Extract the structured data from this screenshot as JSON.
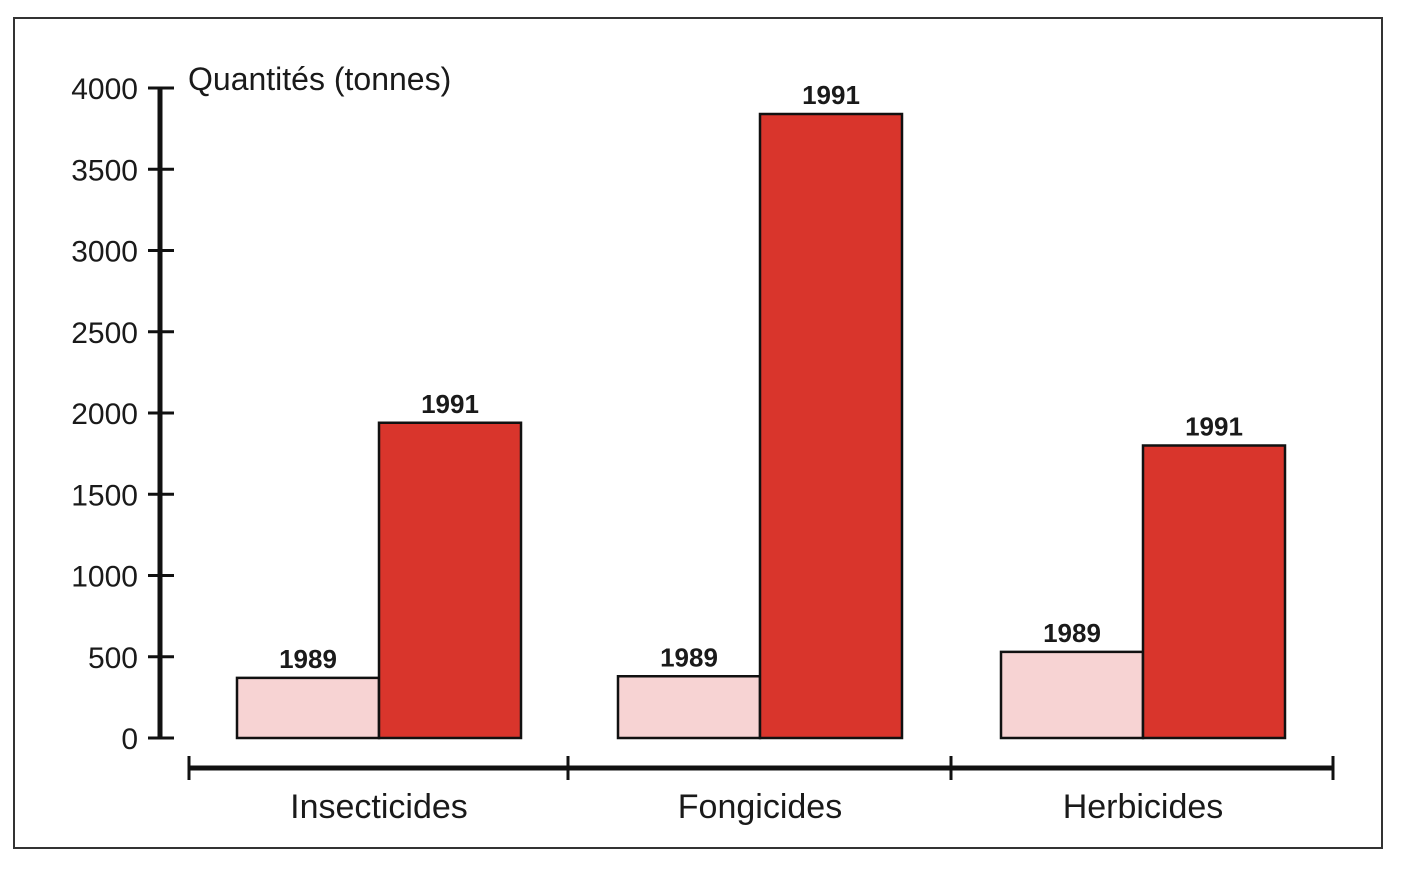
{
  "chart_data": {
    "type": "bar",
    "ylabel": "Quantités (tonnes)",
    "ylim": [
      0,
      4000
    ],
    "yticks": [
      0,
      500,
      1000,
      1500,
      2000,
      2500,
      3000,
      3500,
      4000
    ],
    "categories": [
      "Insecticides",
      "Fongicides",
      "Herbicides"
    ],
    "series": [
      {
        "name": "1989",
        "values": [
          370,
          380,
          530
        ],
        "color": "#f7d3d3"
      },
      {
        "name": "1991",
        "values": [
          1940,
          3840,
          1800
        ],
        "color": "#d9352c"
      }
    ],
    "grid": false,
    "legend": "none"
  }
}
